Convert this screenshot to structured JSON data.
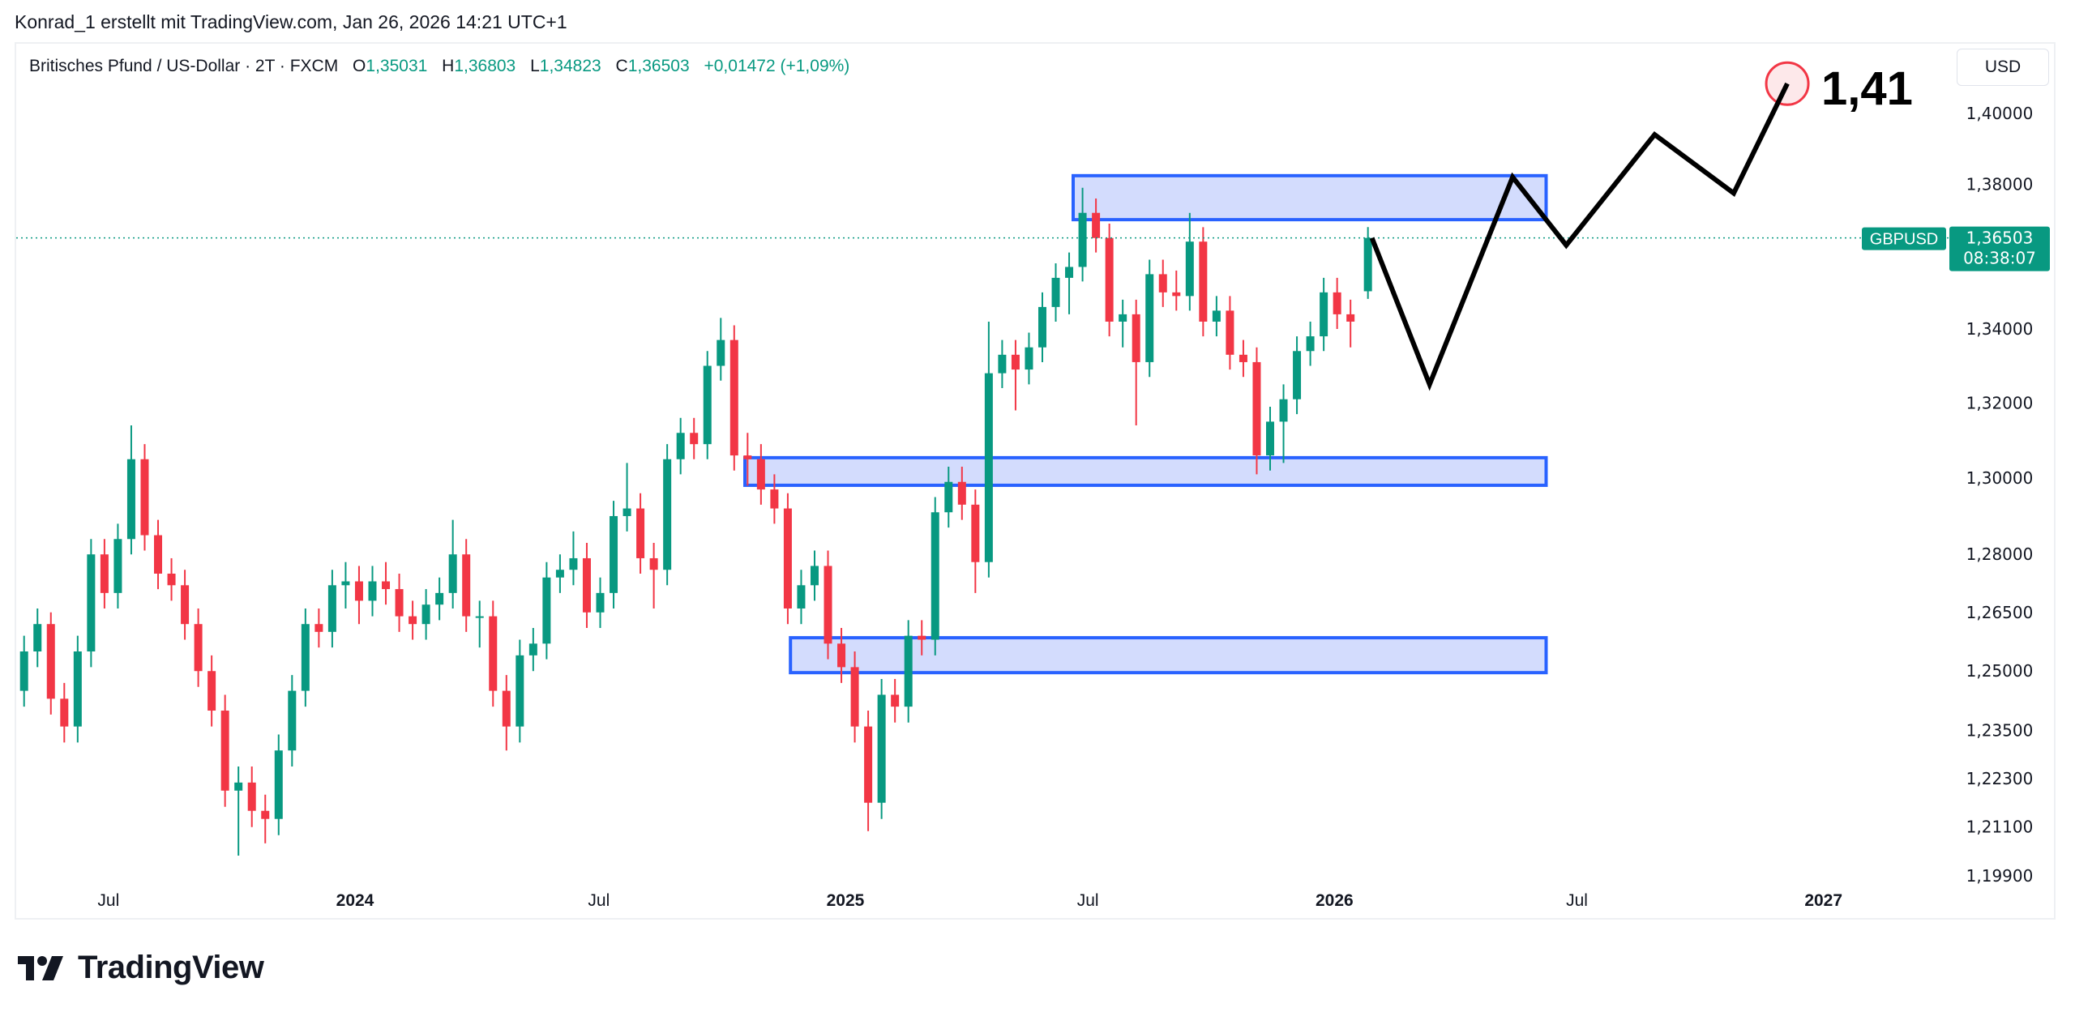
{
  "caption": "Konrad_1 erstellt mit TradingView.com, Jan 26, 2026 14:21 UTC+1",
  "legend": {
    "symbol": "Britisches Pfund / US-Dollar · 2T · FXCM",
    "o_label": "O",
    "o": "1,35031",
    "h_label": "H",
    "h": "1,36803",
    "l_label": "L",
    "l": "1,34823",
    "c_label": "C",
    "c": "1,36503",
    "change": "+0,01472 (+1,09%)"
  },
  "currency_button": "USD",
  "logo_text": "TradingView",
  "colors": {
    "up": "#089981",
    "down": "#f23645",
    "zone_stroke": "#2962ff",
    "zone_fill": "#d3dcfd",
    "projection": "#000000",
    "target_circle": "#f23645"
  },
  "chart_data": {
    "type": "candlestick",
    "symbol": "GBPUSD",
    "y_scale": "log",
    "ylim": [
      1.195,
      1.42
    ],
    "grid": false,
    "price_ticks": [
      {
        "value": 1.4,
        "label": "1,40000"
      },
      {
        "value": 1.38,
        "label": "1,38000"
      },
      {
        "value": 1.34,
        "label": "1,34000"
      },
      {
        "value": 1.32,
        "label": "1,32000"
      },
      {
        "value": 1.3,
        "label": "1,30000"
      },
      {
        "value": 1.28,
        "label": "1,28000"
      },
      {
        "value": 1.265,
        "label": "1,26500"
      },
      {
        "value": 1.25,
        "label": "1,25000"
      },
      {
        "value": 1.235,
        "label": "1,23500"
      },
      {
        "value": 1.223,
        "label": "1,22300"
      },
      {
        "value": 1.211,
        "label": "1,21100"
      },
      {
        "value": 1.199,
        "label": "1,19900"
      }
    ],
    "time_ticks": [
      {
        "date": "2023-07-01",
        "label": "Jul",
        "bold": false
      },
      {
        "date": "2024-01-01",
        "label": "2024",
        "bold": true
      },
      {
        "date": "2024-07-01",
        "label": "Jul",
        "bold": false
      },
      {
        "date": "2025-01-01",
        "label": "2025",
        "bold": true
      },
      {
        "date": "2025-07-01",
        "label": "Jul",
        "bold": false
      },
      {
        "date": "2026-01-01",
        "label": "2026",
        "bold": true
      },
      {
        "date": "2026-07-01",
        "label": "Jul",
        "bold": false
      },
      {
        "date": "2027-01-01",
        "label": "2027",
        "bold": true
      }
    ],
    "last_price": {
      "value": 1.36503,
      "label": "1,36503",
      "countdown": "08:38:07",
      "symbol_label": "GBPUSD"
    },
    "candles_columns": [
      "date",
      "open",
      "high",
      "low",
      "close"
    ],
    "candles": [
      [
        "2023-04-19",
        1.24,
        1.25,
        1.236,
        1.245
      ],
      [
        "2023-04-29",
        1.245,
        1.259,
        1.241,
        1.255
      ],
      [
        "2023-05-09",
        1.255,
        1.266,
        1.251,
        1.262
      ],
      [
        "2023-05-19",
        1.262,
        1.265,
        1.239,
        1.243
      ],
      [
        "2023-05-29",
        1.243,
        1.247,
        1.232,
        1.236
      ],
      [
        "2023-06-08",
        1.236,
        1.259,
        1.232,
        1.255
      ],
      [
        "2023-06-18",
        1.255,
        1.284,
        1.251,
        1.28
      ],
      [
        "2023-06-28",
        1.28,
        1.284,
        1.266,
        1.27
      ],
      [
        "2023-07-08",
        1.27,
        1.288,
        1.266,
        1.284
      ],
      [
        "2023-07-18",
        1.284,
        1.314,
        1.28,
        1.305
      ],
      [
        "2023-07-28",
        1.305,
        1.309,
        1.281,
        1.285
      ],
      [
        "2023-08-07",
        1.285,
        1.289,
        1.271,
        1.275
      ],
      [
        "2023-08-17",
        1.275,
        1.279,
        1.268,
        1.272
      ],
      [
        "2023-08-27",
        1.272,
        1.276,
        1.258,
        1.262
      ],
      [
        "2023-09-06",
        1.262,
        1.266,
        1.246,
        1.25
      ],
      [
        "2023-09-16",
        1.25,
        1.254,
        1.236,
        1.24
      ],
      [
        "2023-09-26",
        1.24,
        1.244,
        1.216,
        1.22
      ],
      [
        "2023-10-06",
        1.22,
        1.226,
        1.204,
        1.222
      ],
      [
        "2023-10-16",
        1.222,
        1.226,
        1.211,
        1.215
      ],
      [
        "2023-10-26",
        1.215,
        1.219,
        1.207,
        1.213
      ],
      [
        "2023-11-05",
        1.213,
        1.234,
        1.209,
        1.23
      ],
      [
        "2023-11-15",
        1.23,
        1.249,
        1.226,
        1.245
      ],
      [
        "2023-11-25",
        1.245,
        1.266,
        1.241,
        1.262
      ],
      [
        "2023-12-05",
        1.262,
        1.266,
        1.256,
        1.26
      ],
      [
        "2023-12-15",
        1.26,
        1.276,
        1.256,
        1.272
      ],
      [
        "2023-12-25",
        1.272,
        1.278,
        1.266,
        1.273
      ],
      [
        "2024-01-04",
        1.273,
        1.277,
        1.262,
        1.268
      ],
      [
        "2024-01-14",
        1.268,
        1.277,
        1.264,
        1.273
      ],
      [
        "2024-01-24",
        1.273,
        1.278,
        1.267,
        1.271
      ],
      [
        "2024-02-03",
        1.271,
        1.275,
        1.26,
        1.264
      ],
      [
        "2024-02-13",
        1.264,
        1.268,
        1.258,
        1.262
      ],
      [
        "2024-02-23",
        1.262,
        1.271,
        1.258,
        1.267
      ],
      [
        "2024-03-04",
        1.267,
        1.274,
        1.263,
        1.27
      ],
      [
        "2024-03-14",
        1.27,
        1.289,
        1.266,
        1.28
      ],
      [
        "2024-03-24",
        1.28,
        1.284,
        1.26,
        1.264
      ],
      [
        "2024-04-03",
        1.264,
        1.268,
        1.256,
        1.264
      ],
      [
        "2024-04-13",
        1.264,
        1.268,
        1.241,
        1.245
      ],
      [
        "2024-04-23",
        1.245,
        1.249,
        1.23,
        1.236
      ],
      [
        "2024-05-03",
        1.236,
        1.258,
        1.232,
        1.254
      ],
      [
        "2024-05-13",
        1.254,
        1.261,
        1.25,
        1.257
      ],
      [
        "2024-05-23",
        1.257,
        1.278,
        1.253,
        1.274
      ],
      [
        "2024-06-02",
        1.274,
        1.28,
        1.27,
        1.276
      ],
      [
        "2024-06-12",
        1.276,
        1.286,
        1.272,
        1.279
      ],
      [
        "2024-06-22",
        1.279,
        1.283,
        1.261,
        1.265
      ],
      [
        "2024-07-02",
        1.265,
        1.274,
        1.261,
        1.27
      ],
      [
        "2024-07-12",
        1.27,
        1.294,
        1.266,
        1.29
      ],
      [
        "2024-07-22",
        1.29,
        1.304,
        1.286,
        1.292
      ],
      [
        "2024-08-01",
        1.292,
        1.296,
        1.275,
        1.279
      ],
      [
        "2024-08-11",
        1.279,
        1.283,
        1.266,
        1.276
      ],
      [
        "2024-08-21",
        1.276,
        1.309,
        1.272,
        1.305
      ],
      [
        "2024-08-31",
        1.305,
        1.316,
        1.301,
        1.312
      ],
      [
        "2024-09-10",
        1.312,
        1.316,
        1.305,
        1.309
      ],
      [
        "2024-09-20",
        1.309,
        1.334,
        1.305,
        1.33
      ],
      [
        "2024-09-30",
        1.33,
        1.343,
        1.326,
        1.337
      ],
      [
        "2024-10-10",
        1.337,
        1.341,
        1.302,
        1.306
      ],
      [
        "2024-10-20",
        1.306,
        1.312,
        1.298,
        1.305
      ],
      [
        "2024-10-30",
        1.305,
        1.309,
        1.293,
        1.297
      ],
      [
        "2024-11-09",
        1.297,
        1.301,
        1.288,
        1.292
      ],
      [
        "2024-11-19",
        1.292,
        1.296,
        1.262,
        1.266
      ],
      [
        "2024-11-29",
        1.266,
        1.276,
        1.262,
        1.272
      ],
      [
        "2024-12-09",
        1.272,
        1.281,
        1.268,
        1.277
      ],
      [
        "2024-12-19",
        1.277,
        1.281,
        1.253,
        1.257
      ],
      [
        "2024-12-29",
        1.257,
        1.261,
        1.247,
        1.251
      ],
      [
        "2025-01-08",
        1.251,
        1.255,
        1.232,
        1.236
      ],
      [
        "2025-01-18",
        1.236,
        1.24,
        1.21,
        1.217
      ],
      [
        "2025-01-28",
        1.217,
        1.248,
        1.213,
        1.244
      ],
      [
        "2025-02-07",
        1.244,
        1.248,
        1.237,
        1.241
      ],
      [
        "2025-02-17",
        1.241,
        1.263,
        1.237,
        1.259
      ],
      [
        "2025-02-27",
        1.259,
        1.263,
        1.254,
        1.258
      ],
      [
        "2025-03-09",
        1.258,
        1.295,
        1.254,
        1.291
      ],
      [
        "2025-03-19",
        1.291,
        1.303,
        1.287,
        1.299
      ],
      [
        "2025-03-29",
        1.299,
        1.303,
        1.289,
        1.293
      ],
      [
        "2025-04-08",
        1.293,
        1.297,
        1.27,
        1.278
      ],
      [
        "2025-04-18",
        1.278,
        1.342,
        1.274,
        1.328
      ],
      [
        "2025-04-28",
        1.328,
        1.337,
        1.324,
        1.333
      ],
      [
        "2025-05-08",
        1.333,
        1.337,
        1.318,
        1.329
      ],
      [
        "2025-05-18",
        1.329,
        1.339,
        1.325,
        1.335
      ],
      [
        "2025-05-28",
        1.335,
        1.35,
        1.331,
        1.346
      ],
      [
        "2025-06-07",
        1.346,
        1.358,
        1.342,
        1.354
      ],
      [
        "2025-06-17",
        1.354,
        1.361,
        1.344,
        1.357
      ],
      [
        "2025-06-27",
        1.357,
        1.379,
        1.353,
        1.372
      ],
      [
        "2025-07-07",
        1.372,
        1.376,
        1.361,
        1.365
      ],
      [
        "2025-07-17",
        1.365,
        1.369,
        1.338,
        1.342
      ],
      [
        "2025-07-27",
        1.342,
        1.348,
        1.335,
        1.344
      ],
      [
        "2025-08-06",
        1.344,
        1.348,
        1.314,
        1.331
      ],
      [
        "2025-08-16",
        1.331,
        1.359,
        1.327,
        1.355
      ],
      [
        "2025-08-26",
        1.355,
        1.359,
        1.346,
        1.35
      ],
      [
        "2025-09-05",
        1.35,
        1.356,
        1.345,
        1.349
      ],
      [
        "2025-09-15",
        1.349,
        1.372,
        1.345,
        1.364
      ],
      [
        "2025-09-25",
        1.364,
        1.368,
        1.338,
        1.342
      ],
      [
        "2025-10-05",
        1.342,
        1.349,
        1.338,
        1.345
      ],
      [
        "2025-10-15",
        1.345,
        1.349,
        1.329,
        1.333
      ],
      [
        "2025-10-25",
        1.333,
        1.337,
        1.327,
        1.331
      ],
      [
        "2025-11-04",
        1.331,
        1.335,
        1.301,
        1.306
      ],
      [
        "2025-11-14",
        1.306,
        1.319,
        1.302,
        1.315
      ],
      [
        "2025-11-24",
        1.315,
        1.325,
        1.304,
        1.321
      ],
      [
        "2025-12-04",
        1.321,
        1.338,
        1.317,
        1.334
      ],
      [
        "2025-12-14",
        1.334,
        1.342,
        1.33,
        1.338
      ],
      [
        "2025-12-24",
        1.338,
        1.354,
        1.334,
        1.35
      ],
      [
        "2026-01-03",
        1.35,
        1.354,
        1.34,
        1.344
      ],
      [
        "2026-01-13",
        1.344,
        1.348,
        1.335,
        1.342
      ],
      [
        "2026-01-26",
        1.35031,
        1.36803,
        1.34823,
        1.36503
      ]
    ],
    "zones": [
      {
        "from": "2025-06-20",
        "to": "2026-06-08",
        "top": 1.3824,
        "bottom": 1.3701
      },
      {
        "from": "2024-10-18",
        "to": "2026-06-08",
        "top": 1.3054,
        "bottom": 1.2981
      },
      {
        "from": "2024-11-21",
        "to": "2026-06-08",
        "top": 1.2585,
        "bottom": 1.2496
      }
    ],
    "projection": [
      [
        "2026-01-29",
        1.365
      ],
      [
        "2026-03-13",
        1.325
      ],
      [
        "2026-05-14",
        1.382
      ],
      [
        "2026-06-23",
        1.363
      ],
      [
        "2026-08-28",
        1.394
      ],
      [
        "2026-10-26",
        1.3775
      ],
      [
        "2026-12-05",
        1.4085
      ]
    ],
    "target_label": "1,41"
  }
}
